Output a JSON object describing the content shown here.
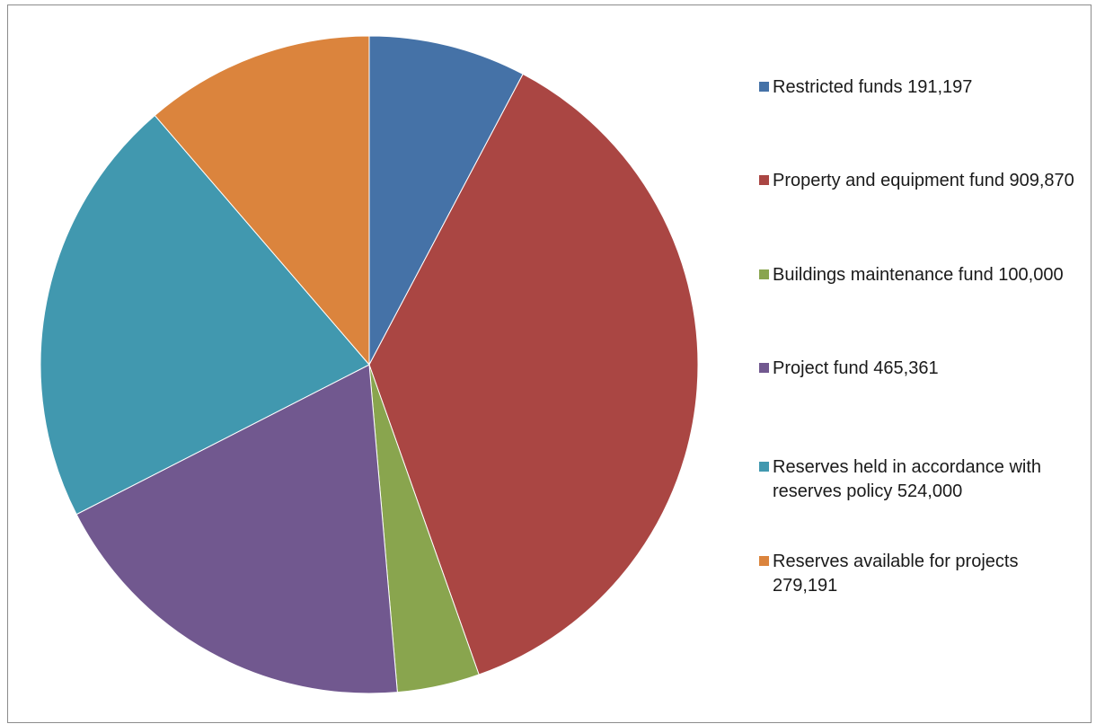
{
  "chart_data": {
    "type": "pie",
    "title": "",
    "legend_position": "right",
    "start_angle_deg": 0,
    "direction": "clockwise",
    "slices": [
      {
        "label": "Restricted funds 191,197",
        "value": 191197,
        "color": "#4572a7"
      },
      {
        "label": "Property and equipment fund 909,870",
        "value": 909870,
        "color": "#aa4643"
      },
      {
        "label": "Buildings maintenance fund 100,000",
        "value": 100000,
        "color": "#89a54e"
      },
      {
        "label": "Project fund 465,361",
        "value": 465361,
        "color": "#71588f"
      },
      {
        "label": "Reserves held in accordance with reserves policy 524,000",
        "value": 524000,
        "color": "#4198af"
      },
      {
        "label": "Reserves available for projects 279,191",
        "value": 279191,
        "color": "#db843d"
      }
    ]
  }
}
